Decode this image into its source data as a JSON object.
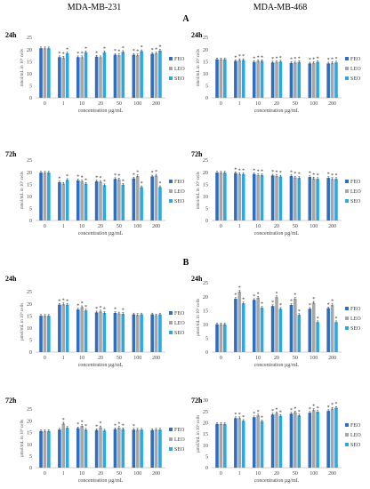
{
  "column_headers": [
    "MDA-MB-231",
    "MDA-MB-468"
  ],
  "section_labels": [
    "A",
    "B"
  ],
  "legend": [
    "FEO",
    "LEO",
    "SEO"
  ],
  "colors": {
    "FEO": "#2e6fc4",
    "LEO": "#a7a7a7",
    "SEO": "#2fa8e0",
    "axis": "#bfbfbf",
    "text": "#222222"
  },
  "chart_data": [
    {
      "type": "bar",
      "section": "A",
      "column": "MDA-MB-231",
      "time": "24h",
      "xlabel": "concentration µg/mL",
      "ylabel": "nmol/mL in 10⁶ cells",
      "categories": [
        "0",
        "1",
        "10",
        "20",
        "50",
        "100",
        "200"
      ],
      "ylim": [
        0,
        25
      ],
      "yticks": [
        0,
        5,
        10,
        15,
        20,
        25
      ],
      "series": [
        {
          "name": "FEO",
          "values": [
            20.5,
            16.8,
            16.8,
            17.0,
            17.8,
            17.8,
            18.2
          ]
        },
        {
          "name": "LEO",
          "values": [
            20.5,
            16.6,
            16.8,
            16.8,
            17.6,
            17.6,
            18.4
          ]
        },
        {
          "name": "SEO",
          "values": [
            20.5,
            18.4,
            18.8,
            18.8,
            19.0,
            19.3,
            19.5
          ]
        }
      ],
      "stars": [
        [
          false,
          false,
          false
        ],
        [
          true,
          true,
          true
        ],
        [
          true,
          true,
          true
        ],
        [
          true,
          false,
          true
        ],
        [
          true,
          true,
          true
        ],
        [
          true,
          true,
          true
        ],
        [
          true,
          true,
          true
        ]
      ]
    },
    {
      "type": "bar",
      "section": "A",
      "column": "MDA-MB-468",
      "time": "24h",
      "xlabel": "concentration µg/mL",
      "ylabel": "nmol/mL in 10⁶ cells",
      "categories": [
        "0",
        "1",
        "10",
        "20",
        "50",
        "100",
        "200"
      ],
      "ylim": [
        0,
        25
      ],
      "yticks": [
        0,
        5,
        10,
        15,
        20,
        25
      ],
      "series": [
        {
          "name": "FEO",
          "values": [
            15.9,
            15.2,
            14.8,
            14.6,
            14.4,
            14.2,
            14.2
          ]
        },
        {
          "name": "LEO",
          "values": [
            15.9,
            15.6,
            15.2,
            14.8,
            14.6,
            14.4,
            14.4
          ]
        },
        {
          "name": "SEO",
          "values": [
            15.9,
            15.6,
            15.2,
            15.0,
            14.8,
            14.8,
            14.6
          ]
        }
      ],
      "stars": [
        [
          false,
          false,
          false
        ],
        [
          true,
          true,
          true
        ],
        [
          true,
          true,
          true
        ],
        [
          true,
          true,
          true
        ],
        [
          true,
          true,
          true
        ],
        [
          true,
          true,
          true
        ],
        [
          true,
          true,
          true
        ]
      ]
    },
    {
      "type": "bar",
      "section": "A",
      "column": "MDA-MB-231",
      "time": "72h",
      "xlabel": "concentration µg/mL",
      "ylabel": "nmol/mL in 10⁶ cells",
      "categories": [
        "0",
        "1",
        "10",
        "20",
        "50",
        "100",
        "200"
      ],
      "ylim": [
        0,
        25
      ],
      "yticks": [
        0,
        5,
        10,
        15,
        20,
        25
      ],
      "series": [
        {
          "name": "FEO",
          "values": [
            19.8,
            15.8,
            16.6,
            16.2,
            17.2,
            17.4,
            18.2
          ]
        },
        {
          "name": "LEO",
          "values": [
            19.8,
            15.2,
            16.2,
            16.0,
            17.0,
            18.4,
            18.6
          ]
        },
        {
          "name": "SEO",
          "values": [
            19.8,
            16.8,
            15.2,
            14.6,
            14.8,
            13.8,
            13.8
          ]
        }
      ],
      "stars": [
        [
          false,
          false,
          false
        ],
        [
          true,
          false,
          true
        ],
        [
          true,
          true,
          true
        ],
        [
          true,
          true,
          true
        ],
        [
          true,
          true,
          true
        ],
        [
          true,
          true,
          true
        ],
        [
          true,
          true,
          true
        ]
      ]
    },
    {
      "type": "bar",
      "section": "A",
      "column": "MDA-MB-468",
      "time": "72h",
      "xlabel": "concentration µg/mL",
      "ylabel": "nmol/mL in 10⁶ cells",
      "categories": [
        "0",
        "1",
        "10",
        "20",
        "50",
        "100",
        "200"
      ],
      "ylim": [
        0,
        25
      ],
      "yticks": [
        0,
        5,
        10,
        15,
        20,
        25
      ],
      "series": [
        {
          "name": "FEO",
          "values": [
            19.8,
            19.6,
            19.2,
            18.6,
            18.4,
            18.0,
            17.6
          ]
        },
        {
          "name": "LEO",
          "values": [
            19.8,
            19.2,
            18.8,
            18.4,
            17.8,
            17.4,
            17.2
          ]
        },
        {
          "name": "SEO",
          "values": [
            19.8,
            19.2,
            18.8,
            18.2,
            17.6,
            17.2,
            17.2
          ]
        }
      ],
      "stars": [
        [
          false,
          false,
          false
        ],
        [
          true,
          true,
          true
        ],
        [
          true,
          true,
          true
        ],
        [
          true,
          true,
          true
        ],
        [
          true,
          true,
          true
        ],
        [
          true,
          true,
          true
        ],
        [
          true,
          true,
          true
        ]
      ]
    },
    {
      "type": "bar",
      "section": "B",
      "column": "MDA-MB-231",
      "time": "24h",
      "xlabel": "concentration µg/mL",
      "ylabel": "µmol/mL in 10⁶ cells",
      "categories": [
        "0",
        "1",
        "10",
        "20",
        "50",
        "100",
        "200"
      ],
      "ylim": [
        0,
        25
      ],
      "yticks": [
        0,
        5,
        10,
        15,
        20,
        25
      ],
      "series": [
        {
          "name": "FEO",
          "values": [
            15.0,
            19.6,
            17.6,
            16.4,
            16.2,
            15.6,
            15.6
          ]
        },
        {
          "name": "LEO",
          "values": [
            15.0,
            19.8,
            18.6,
            16.8,
            16.0,
            15.4,
            15.2
          ]
        },
        {
          "name": "SEO",
          "values": [
            15.0,
            19.6,
            17.2,
            16.2,
            15.8,
            15.6,
            15.6
          ]
        }
      ],
      "stars": [
        [
          false,
          false,
          false
        ],
        [
          true,
          true,
          true
        ],
        [
          true,
          true,
          true
        ],
        [
          true,
          true,
          true
        ],
        [
          true,
          false,
          true
        ],
        [
          false,
          false,
          false
        ],
        [
          false,
          false,
          false
        ]
      ]
    },
    {
      "type": "bar",
      "section": "B",
      "column": "MDA-MB-468",
      "time": "24h",
      "xlabel": "concentration µg/mL",
      "ylabel": "µmol/mL in 10⁶ cells",
      "categories": [
        "0",
        "1",
        "10",
        "20",
        "50",
        "100",
        "200"
      ],
      "ylim": [
        0,
        25
      ],
      "yticks": [
        0,
        5,
        10,
        15,
        20,
        25
      ],
      "series": [
        {
          "name": "FEO",
          "values": [
            10.0,
            19.2,
            18.8,
            16.6,
            17.0,
            15.6,
            15.8
          ]
        },
        {
          "name": "LEO",
          "values": [
            10.0,
            21.8,
            19.6,
            19.8,
            19.2,
            17.8,
            17.0
          ]
        },
        {
          "name": "SEO",
          "values": [
            10.0,
            17.6,
            16.0,
            15.6,
            13.4,
            10.8,
            10.8
          ]
        }
      ],
      "stars": [
        [
          false,
          false,
          false
        ],
        [
          true,
          true,
          true
        ],
        [
          true,
          true,
          true
        ],
        [
          true,
          true,
          true
        ],
        [
          true,
          true,
          true
        ],
        [
          true,
          true,
          true
        ],
        [
          true,
          true,
          true
        ]
      ]
    },
    {
      "type": "bar",
      "section": "B",
      "column": "MDA-MB-231",
      "time": "72h",
      "xlabel": "concentration µg/mL",
      "ylabel": "µmol/mL in 10⁶ cells",
      "categories": [
        "0",
        "1",
        "10",
        "20",
        "50",
        "100",
        "200"
      ],
      "ylim": [
        0,
        25
      ],
      "yticks": [
        0,
        5,
        10,
        15,
        20,
        25
      ],
      "series": [
        {
          "name": "FEO",
          "values": [
            15.6,
            16.2,
            16.8,
            16.0,
            16.4,
            16.2,
            16.0
          ]
        },
        {
          "name": "LEO",
          "values": [
            15.6,
            18.8,
            17.8,
            17.2,
            17.0,
            16.2,
            16.2
          ]
        },
        {
          "name": "SEO",
          "values": [
            15.6,
            17.0,
            16.2,
            15.8,
            16.4,
            16.2,
            16.2
          ]
        }
      ],
      "stars": [
        [
          false,
          false,
          false
        ],
        [
          false,
          true,
          false
        ],
        [
          true,
          true,
          true
        ],
        [
          true,
          true,
          false
        ],
        [
          true,
          true,
          true
        ],
        [
          true,
          false,
          false
        ],
        [
          false,
          false,
          false
        ]
      ]
    },
    {
      "type": "bar",
      "section": "B",
      "column": "MDA-MB-468",
      "time": "72h",
      "xlabel": "concentration µg/mL",
      "ylabel": "µmol/mL in 10⁶ cells",
      "categories": [
        "0",
        "1",
        "10",
        "20",
        "50",
        "100",
        "200"
      ],
      "ylim": [
        0,
        30
      ],
      "yticks": [
        0,
        5,
        10,
        15,
        20,
        25,
        30
      ],
      "series": [
        {
          "name": "FEO",
          "values": [
            19.4,
            22.0,
            22.4,
            23.6,
            24.0,
            24.4,
            25.2
          ]
        },
        {
          "name": "LEO",
          "values": [
            19.4,
            22.0,
            23.2,
            24.2,
            24.6,
            25.6,
            26.2
          ]
        },
        {
          "name": "SEO",
          "values": [
            19.4,
            20.8,
            20.6,
            23.0,
            23.2,
            24.8,
            26.6
          ]
        }
      ],
      "stars": [
        [
          false,
          false,
          false
        ],
        [
          true,
          true,
          true
        ],
        [
          true,
          true,
          true
        ],
        [
          true,
          true,
          true
        ],
        [
          true,
          true,
          true
        ],
        [
          true,
          true,
          true
        ],
        [
          true,
          true,
          true
        ]
      ]
    }
  ]
}
